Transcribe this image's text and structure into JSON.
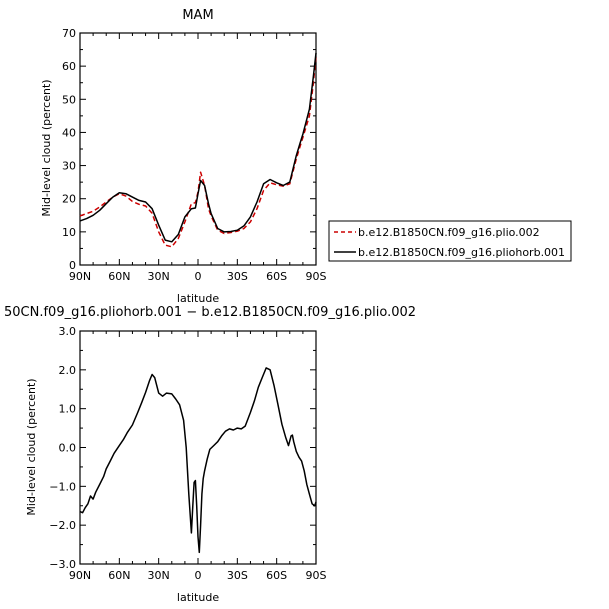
{
  "chart_data": [
    {
      "type": "line",
      "title": "MAM",
      "xlabel": "latitude",
      "ylabel": "Mid-level cloud (percent)",
      "x_tick_labels": [
        "90N",
        "60N",
        "30N",
        "0",
        "30S",
        "60S",
        "90S"
      ],
      "x_tick_values": [
        90,
        60,
        30,
        0,
        -30,
        -60,
        -90
      ],
      "xlim": [
        90,
        -90
      ],
      "ylim": [
        0,
        70
      ],
      "y_tick_labels": [
        "0",
        "10",
        "20",
        "30",
        "40",
        "50",
        "60",
        "70"
      ],
      "y_tick_values": [
        0,
        10,
        20,
        30,
        40,
        50,
        60,
        70
      ],
      "grid": false,
      "legend_position": "right",
      "series": [
        {
          "name": "b.e12.B1850CN.f09_g16.plio.002",
          "color": "#cc0000",
          "dash": "dashed",
          "x": [
            90,
            85,
            80,
            75,
            70,
            65,
            60,
            55,
            50,
            45,
            40,
            35,
            30,
            25,
            20,
            15,
            10,
            5,
            2,
            0,
            -2,
            -5,
            -8,
            -10,
            -15,
            -20,
            -25,
            -30,
            -35,
            -40,
            -45,
            -50,
            -55,
            -60,
            -65,
            -70,
            -75,
            -78,
            -80,
            -85,
            -88,
            -90
          ],
          "y": [
            14.8,
            15.5,
            16.2,
            17.5,
            19.0,
            20.5,
            21.5,
            20.8,
            19.2,
            18.3,
            17.8,
            15.6,
            10.0,
            6.0,
            5.5,
            8.0,
            13.0,
            18.5,
            18.8,
            22.0,
            28.0,
            24.0,
            17.0,
            14.8,
            10.5,
            9.5,
            9.8,
            10.2,
            11.0,
            13.0,
            17.0,
            22.5,
            24.8,
            24.2,
            23.8,
            24.5,
            32.0,
            36.0,
            38.5,
            45.0,
            55.0,
            63.0
          ]
        },
        {
          "name": "b.e12.B1850CN.f09_g16.pliohorb.001",
          "color": "#000000",
          "dash": "solid",
          "x": [
            90,
            85,
            80,
            75,
            70,
            65,
            60,
            55,
            50,
            45,
            40,
            35,
            30,
            25,
            20,
            15,
            10,
            5,
            2,
            0,
            -2,
            -5,
            -8,
            -10,
            -15,
            -20,
            -25,
            -30,
            -35,
            -40,
            -45,
            -50,
            -55,
            -60,
            -65,
            -70,
            -75,
            -78,
            -80,
            -85,
            -88,
            -90
          ],
          "y": [
            13.3,
            14.0,
            15.0,
            16.5,
            18.5,
            20.5,
            21.8,
            21.5,
            20.5,
            19.5,
            19.0,
            17.0,
            12.0,
            7.5,
            7.0,
            9.2,
            14.5,
            17.0,
            17.2,
            21.5,
            25.5,
            24.0,
            18.5,
            15.5,
            11.0,
            10.0,
            10.1,
            10.5,
            11.8,
            14.5,
            19.0,
            24.5,
            25.8,
            24.8,
            24.0,
            25.0,
            33.0,
            37.0,
            39.5,
            47.0,
            57.0,
            64.0
          ]
        }
      ]
    },
    {
      "type": "line",
      "title": "50CN.f09_g16.pliohorb.001 − b.e12.B1850CN.f09_g16.plio.002",
      "xlabel": "latitude",
      "ylabel": "Mid-level cloud (percent)",
      "x_tick_labels": [
        "90N",
        "60N",
        "30N",
        "0",
        "30S",
        "60S",
        "90S"
      ],
      "x_tick_values": [
        90,
        60,
        30,
        0,
        -30,
        -60,
        -90
      ],
      "xlim": [
        90,
        -90
      ],
      "ylim": [
        -3,
        3
      ],
      "y_tick_labels": [
        "−3.0",
        "−2.0",
        "−1.0",
        "0.0",
        "1.0",
        "2.0",
        "3.0"
      ],
      "y_tick_values": [
        -3,
        -2,
        -1,
        0,
        1,
        2,
        3
      ],
      "grid": false,
      "series": [
        {
          "name": "",
          "color": "#000000",
          "dash": "solid",
          "x": [
            90,
            88,
            86,
            84,
            82,
            80,
            78,
            75,
            72,
            70,
            67,
            64,
            60,
            57,
            54,
            50,
            46,
            43,
            40,
            37,
            35,
            33,
            30,
            27,
            24,
            20,
            17,
            14,
            11,
            9,
            7,
            5,
            4,
            3,
            2,
            1,
            0,
            -1,
            -2,
            -3,
            -4,
            -5,
            -7,
            -9,
            -12,
            -15,
            -18,
            -21,
            -24,
            -27,
            -30,
            -33,
            -36,
            -40,
            -43,
            -46,
            -49,
            -52,
            -55,
            -58,
            -61,
            -64,
            -67,
            -69,
            -71,
            -72,
            -73,
            -75,
            -77,
            -79,
            -81,
            -83,
            -85,
            -87,
            -89,
            -90
          ],
          "y": [
            -1.65,
            -1.68,
            -1.55,
            -1.45,
            -1.25,
            -1.33,
            -1.15,
            -0.95,
            -0.75,
            -0.55,
            -0.35,
            -0.15,
            0.05,
            0.2,
            0.38,
            0.58,
            0.9,
            1.15,
            1.42,
            1.72,
            1.88,
            1.8,
            1.4,
            1.32,
            1.4,
            1.38,
            1.25,
            1.1,
            0.7,
            0.0,
            -1.2,
            -2.2,
            -1.5,
            -0.9,
            -0.85,
            -1.5,
            -2.3,
            -2.7,
            -2.0,
            -1.2,
            -0.8,
            -0.6,
            -0.3,
            -0.05,
            0.05,
            0.15,
            0.3,
            0.42,
            0.48,
            0.45,
            0.5,
            0.48,
            0.55,
            0.9,
            1.2,
            1.55,
            1.8,
            2.05,
            2.0,
            1.6,
            1.1,
            0.6,
            0.25,
            0.05,
            0.3,
            0.32,
            0.15,
            -0.1,
            -0.25,
            -0.35,
            -0.6,
            -0.95,
            -1.2,
            -1.45,
            -1.5,
            -1.4
          ]
        }
      ]
    }
  ]
}
